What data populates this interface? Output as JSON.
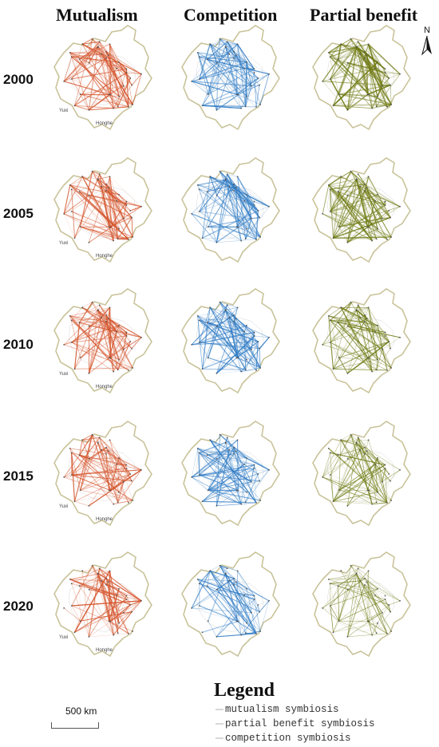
{
  "columns": [
    "Mutualism",
    "Competition",
    "Partial benefit"
  ],
  "rows": [
    "2000",
    "2005",
    "2010",
    "2015",
    "2020"
  ],
  "colors": {
    "mutualism": "#d4532a",
    "competition": "#2f7bc4",
    "partial_benefit": "#6f7a12",
    "boundary": "#c9c39a"
  },
  "north_label": "N",
  "scale": {
    "label": "500 km"
  },
  "legend": {
    "title": "Legend",
    "items": [
      "mutualism symbiosis",
      "partial benefit symbiosis",
      "competition symbiosis"
    ]
  },
  "map_labels": {
    "yuxi": "Yuxi",
    "honghe": "Honghe"
  }
}
